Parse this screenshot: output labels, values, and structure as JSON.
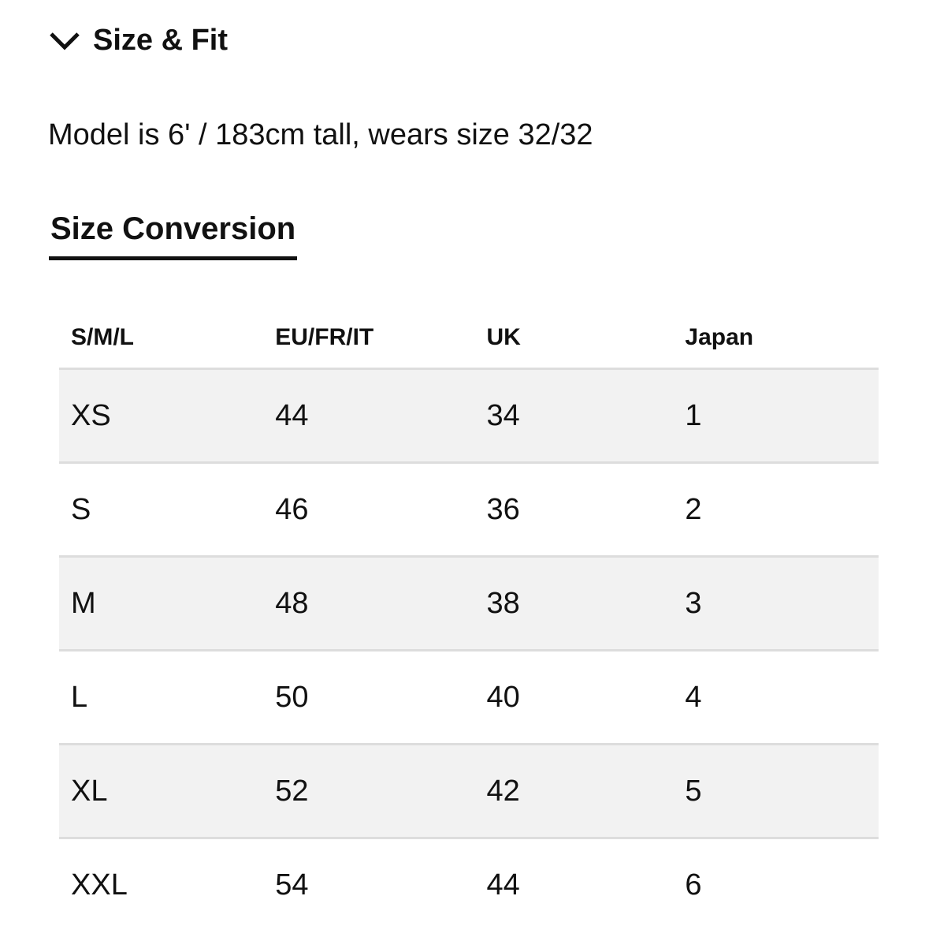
{
  "section": {
    "title": "Size & Fit",
    "icon": "chevron-down-icon"
  },
  "model_info": "Model is 6' / 183cm tall, wears size 32/32",
  "tab": {
    "label": "Size Conversion"
  },
  "table": {
    "headers": [
      "S/M/L",
      "EU/FR/IT",
      "UK",
      "Japan"
    ],
    "rows": [
      [
        "XS",
        "44",
        "34",
        "1"
      ],
      [
        "S",
        "46",
        "36",
        "2"
      ],
      [
        "M",
        "48",
        "38",
        "3"
      ],
      [
        "L",
        "50",
        "40",
        "4"
      ],
      [
        "XL",
        "52",
        "42",
        "5"
      ],
      [
        "XXL",
        "54",
        "44",
        "6"
      ]
    ]
  }
}
